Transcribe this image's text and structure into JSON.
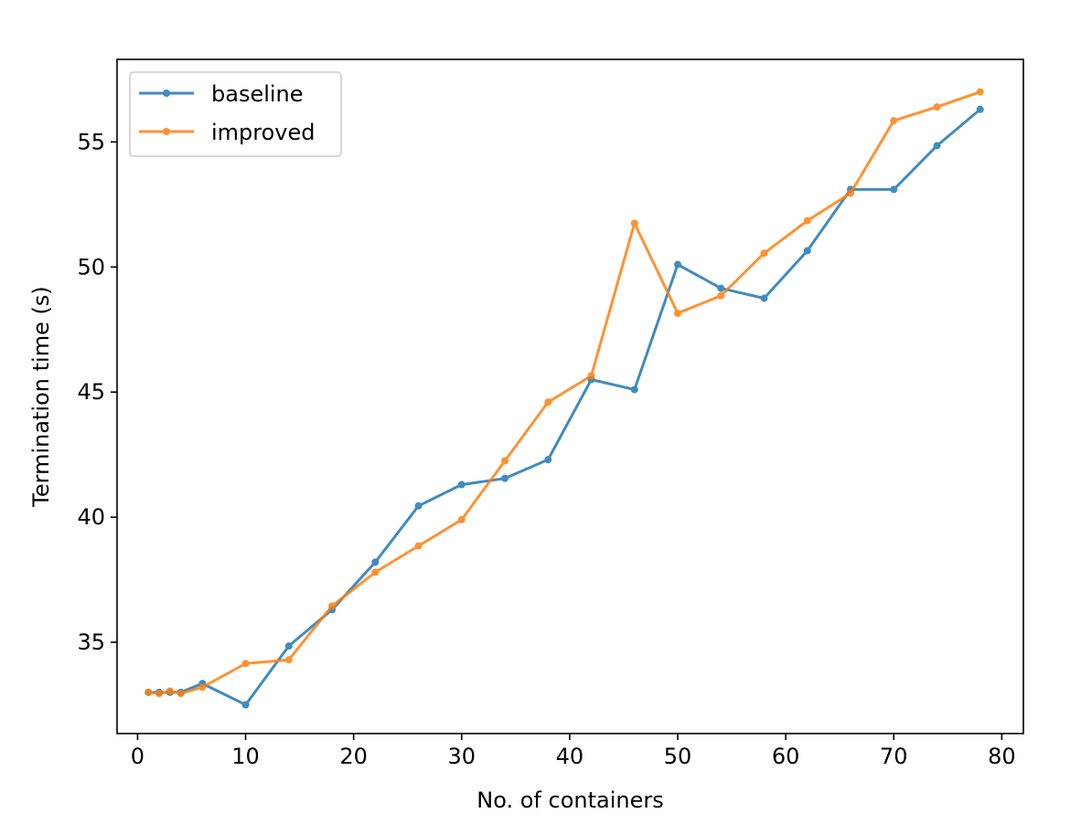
{
  "chart_data": {
    "type": "line",
    "title": "",
    "xlabel": "No. of containers",
    "ylabel": "Termination time (s)",
    "xlim": [
      -1.9,
      82
    ],
    "ylim": [
      31.35,
      58.3
    ],
    "xticks": [
      0,
      10,
      20,
      30,
      40,
      50,
      60,
      70,
      80
    ],
    "yticks": [
      35,
      40,
      45,
      50,
      55
    ],
    "grid": false,
    "legend": "upper-left",
    "series": [
      {
        "name": "baseline",
        "color": "#1f77b4",
        "marker": "circle",
        "x": [
          1,
          2,
          3,
          4,
          6,
          10,
          14,
          18,
          22,
          26,
          30,
          34,
          38,
          42,
          46,
          50,
          54,
          58,
          62,
          66,
          70,
          74,
          78
        ],
        "y": [
          33.0,
          33.0,
          33.0,
          33.0,
          33.35,
          32.5,
          34.85,
          36.3,
          38.2,
          40.45,
          41.3,
          41.55,
          42.3,
          45.5,
          45.1,
          50.1,
          49.15,
          48.75,
          50.65,
          53.1,
          53.1,
          54.85,
          56.3
        ]
      },
      {
        "name": "improved",
        "color": "#ff7f0e",
        "marker": "circle",
        "x": [
          1,
          2,
          3,
          4,
          6,
          10,
          14,
          18,
          22,
          26,
          30,
          34,
          38,
          42,
          46,
          50,
          54,
          58,
          62,
          66,
          70,
          74,
          78
        ],
        "y": [
          33.0,
          32.95,
          33.05,
          32.95,
          33.2,
          34.15,
          34.3,
          36.45,
          37.8,
          38.85,
          39.9,
          42.25,
          44.6,
          45.65,
          51.75,
          48.15,
          48.85,
          50.55,
          51.85,
          52.95,
          55.85,
          56.4,
          57.0
        ]
      }
    ]
  }
}
